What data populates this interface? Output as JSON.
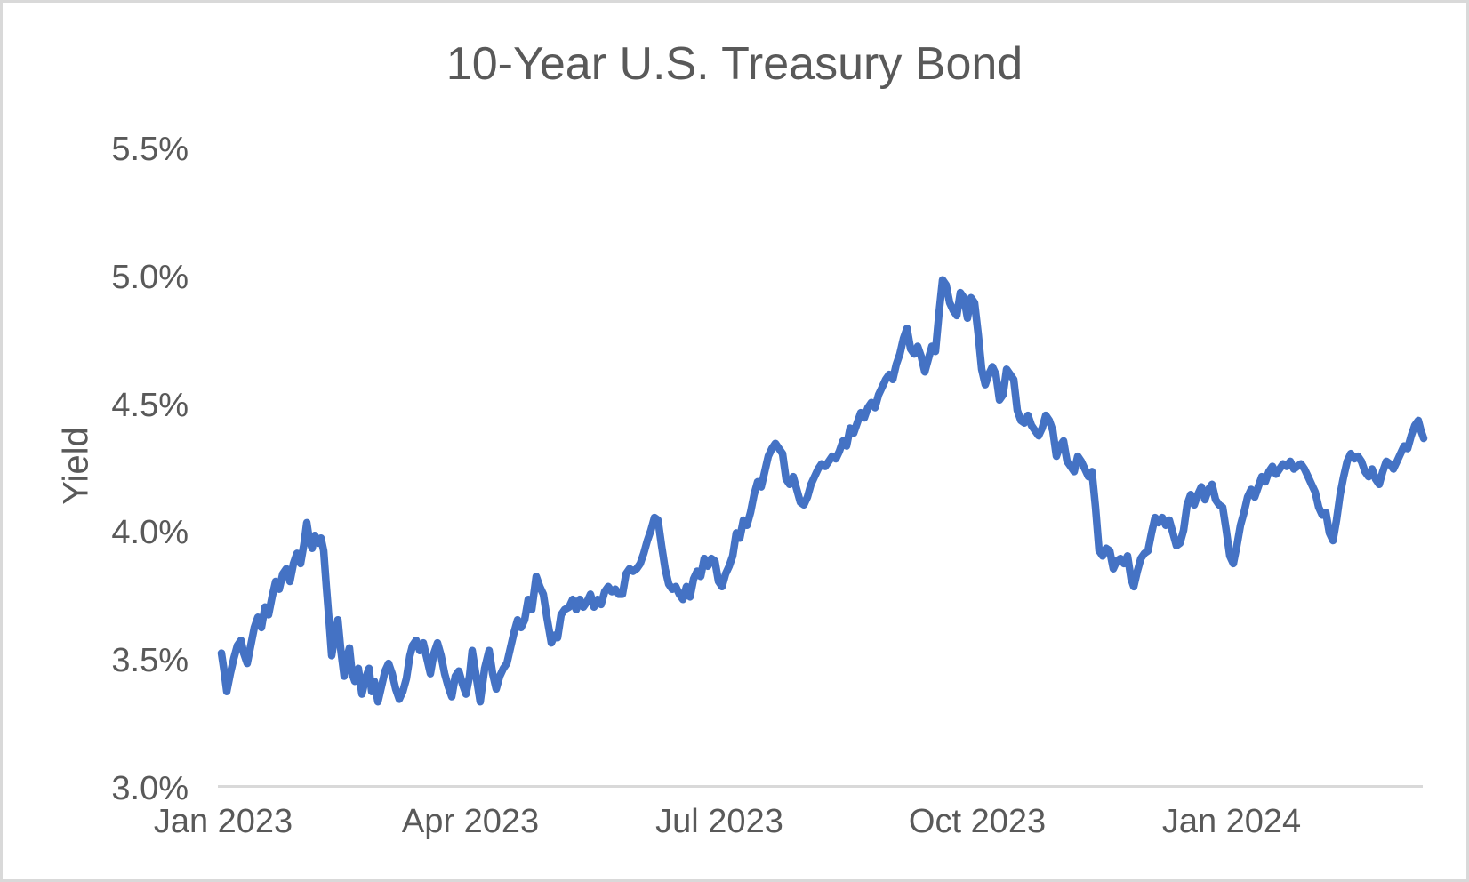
{
  "chart_data": {
    "type": "line",
    "title": "10-Year U.S. Treasury Bond",
    "ylabel": "Yield",
    "line_color": "#4472C4",
    "axis_line_color": "#d9d9d9",
    "text_color": "#595959",
    "grid": false,
    "legend": false,
    "ylim": [
      3.0,
      5.5
    ],
    "y_ticks": [
      {
        "label": "5.5%",
        "value": 5.5
      },
      {
        "label": "5.0%",
        "value": 5.0
      },
      {
        "label": "4.5%",
        "value": 4.5
      },
      {
        "label": "4.0%",
        "value": 4.0
      },
      {
        "label": "3.5%",
        "value": 3.5
      },
      {
        "label": "3.0%",
        "value": 3.0
      }
    ],
    "x_span": 1352,
    "x_ticks": [
      {
        "label": "Jan 2023",
        "pos": 2
      },
      {
        "label": "Apr 2023",
        "pos": 280
      },
      {
        "label": "Jul 2023",
        "pos": 560
      },
      {
        "label": "Oct 2023",
        "pos": 850
      },
      {
        "label": "Jan 2024",
        "pos": 1136
      }
    ],
    "points": [
      [
        0,
        3.53
      ],
      [
        3,
        3.46
      ],
      [
        6,
        3.38
      ],
      [
        10,
        3.45
      ],
      [
        14,
        3.51
      ],
      [
        18,
        3.56
      ],
      [
        22,
        3.58
      ],
      [
        25,
        3.53
      ],
      [
        29,
        3.49
      ],
      [
        33,
        3.56
      ],
      [
        37,
        3.63
      ],
      [
        41,
        3.67
      ],
      [
        45,
        3.63
      ],
      [
        49,
        3.71
      ],
      [
        53,
        3.68
      ],
      [
        57,
        3.75
      ],
      [
        61,
        3.81
      ],
      [
        65,
        3.78
      ],
      [
        69,
        3.84
      ],
      [
        73,
        3.86
      ],
      [
        77,
        3.81
      ],
      [
        81,
        3.88
      ],
      [
        85,
        3.92
      ],
      [
        89,
        3.88
      ],
      [
        93,
        3.96
      ],
      [
        96,
        4.04
      ],
      [
        99,
        3.97
      ],
      [
        102,
        3.94
      ],
      [
        105,
        3.99
      ],
      [
        109,
        3.96
      ],
      [
        112,
        3.98
      ],
      [
        115,
        3.93
      ],
      [
        118,
        3.79
      ],
      [
        121,
        3.66
      ],
      [
        124,
        3.52
      ],
      [
        128,
        3.61
      ],
      [
        131,
        3.66
      ],
      [
        134,
        3.55
      ],
      [
        138,
        3.44
      ],
      [
        141,
        3.51
      ],
      [
        144,
        3.55
      ],
      [
        147,
        3.45
      ],
      [
        150,
        3.42
      ],
      [
        154,
        3.47
      ],
      [
        158,
        3.37
      ],
      [
        162,
        3.43
      ],
      [
        166,
        3.47
      ],
      [
        169,
        3.38
      ],
      [
        172,
        3.42
      ],
      [
        176,
        3.34
      ],
      [
        180,
        3.4
      ],
      [
        184,
        3.46
      ],
      [
        188,
        3.49
      ],
      [
        192,
        3.45
      ],
      [
        196,
        3.39
      ],
      [
        200,
        3.35
      ],
      [
        204,
        3.38
      ],
      [
        208,
        3.43
      ],
      [
        212,
        3.52
      ],
      [
        215,
        3.56
      ],
      [
        219,
        3.58
      ],
      [
        223,
        3.54
      ],
      [
        227,
        3.57
      ],
      [
        231,
        3.51
      ],
      [
        235,
        3.45
      ],
      [
        239,
        3.53
      ],
      [
        243,
        3.57
      ],
      [
        247,
        3.52
      ],
      [
        251,
        3.45
      ],
      [
        255,
        3.4
      ],
      [
        259,
        3.36
      ],
      [
        263,
        3.44
      ],
      [
        267,
        3.46
      ],
      [
        271,
        3.41
      ],
      [
        275,
        3.37
      ],
      [
        279,
        3.44
      ],
      [
        282,
        3.54
      ],
      [
        286,
        3.45
      ],
      [
        291,
        3.34
      ],
      [
        296,
        3.47
      ],
      [
        301,
        3.54
      ],
      [
        305,
        3.45
      ],
      [
        309,
        3.39
      ],
      [
        313,
        3.44
      ],
      [
        317,
        3.47
      ],
      [
        321,
        3.49
      ],
      [
        325,
        3.55
      ],
      [
        329,
        3.61
      ],
      [
        333,
        3.66
      ],
      [
        337,
        3.63
      ],
      [
        341,
        3.66
      ],
      [
        345,
        3.74
      ],
      [
        349,
        3.7
      ],
      [
        354,
        3.83
      ],
      [
        358,
        3.79
      ],
      [
        362,
        3.76
      ],
      [
        366,
        3.67
      ],
      [
        371,
        3.57
      ],
      [
        375,
        3.6
      ],
      [
        378,
        3.59
      ],
      [
        382,
        3.68
      ],
      [
        386,
        3.7
      ],
      [
        391,
        3.71
      ],
      [
        395,
        3.74
      ],
      [
        399,
        3.7
      ],
      [
        403,
        3.74
      ],
      [
        407,
        3.71
      ],
      [
        411,
        3.73
      ],
      [
        415,
        3.76
      ],
      [
        419,
        3.71
      ],
      [
        423,
        3.74
      ],
      [
        427,
        3.72
      ],
      [
        431,
        3.77
      ],
      [
        435,
        3.79
      ],
      [
        439,
        3.77
      ],
      [
        443,
        3.78
      ],
      [
        447,
        3.76
      ],
      [
        451,
        3.76
      ],
      [
        455,
        3.84
      ],
      [
        459,
        3.86
      ],
      [
        463,
        3.85
      ],
      [
        467,
        3.86
      ],
      [
        471,
        3.88
      ],
      [
        475,
        3.92
      ],
      [
        479,
        3.97
      ],
      [
        483,
        4.01
      ],
      [
        487,
        4.06
      ],
      [
        491,
        4.05
      ],
      [
        495,
        3.95
      ],
      [
        499,
        3.86
      ],
      [
        503,
        3.8
      ],
      [
        507,
        3.78
      ],
      [
        511,
        3.79
      ],
      [
        515,
        3.76
      ],
      [
        519,
        3.74
      ],
      [
        523,
        3.79
      ],
      [
        527,
        3.75
      ],
      [
        531,
        3.82
      ],
      [
        535,
        3.85
      ],
      [
        539,
        3.83
      ],
      [
        543,
        3.9
      ],
      [
        547,
        3.87
      ],
      [
        551,
        3.9
      ],
      [
        555,
        3.89
      ],
      [
        559,
        3.81
      ],
      [
        563,
        3.79
      ],
      [
        567,
        3.84
      ],
      [
        571,
        3.87
      ],
      [
        575,
        3.91
      ],
      [
        579,
        4.0
      ],
      [
        583,
        3.98
      ],
      [
        587,
        4.05
      ],
      [
        591,
        4.03
      ],
      [
        595,
        4.08
      ],
      [
        599,
        4.15
      ],
      [
        603,
        4.2
      ],
      [
        607,
        4.18
      ],
      [
        611,
        4.24
      ],
      [
        615,
        4.3
      ],
      [
        619,
        4.33
      ],
      [
        623,
        4.35
      ],
      [
        627,
        4.33
      ],
      [
        631,
        4.31
      ],
      [
        635,
        4.21
      ],
      [
        639,
        4.19
      ],
      [
        643,
        4.22
      ],
      [
        647,
        4.17
      ],
      [
        651,
        4.12
      ],
      [
        655,
        4.11
      ],
      [
        659,
        4.14
      ],
      [
        663,
        4.19
      ],
      [
        667,
        4.22
      ],
      [
        671,
        4.25
      ],
      [
        675,
        4.27
      ],
      [
        679,
        4.26
      ],
      [
        683,
        4.28
      ],
      [
        687,
        4.3
      ],
      [
        691,
        4.29
      ],
      [
        695,
        4.32
      ],
      [
        699,
        4.36
      ],
      [
        703,
        4.34
      ],
      [
        707,
        4.41
      ],
      [
        711,
        4.39
      ],
      [
        715,
        4.43
      ],
      [
        719,
        4.47
      ],
      [
        723,
        4.45
      ],
      [
        727,
        4.49
      ],
      [
        731,
        4.51
      ],
      [
        735,
        4.49
      ],
      [
        739,
        4.54
      ],
      [
        743,
        4.57
      ],
      [
        747,
        4.6
      ],
      [
        751,
        4.62
      ],
      [
        755,
        4.6
      ],
      [
        759,
        4.66
      ],
      [
        763,
        4.7
      ],
      [
        767,
        4.76
      ],
      [
        771,
        4.8
      ],
      [
        775,
        4.72
      ],
      [
        779,
        4.7
      ],
      [
        783,
        4.73
      ],
      [
        787,
        4.69
      ],
      [
        791,
        4.63
      ],
      [
        795,
        4.68
      ],
      [
        799,
        4.73
      ],
      [
        803,
        4.71
      ],
      [
        807,
        4.86
      ],
      [
        811,
        4.99
      ],
      [
        815,
        4.97
      ],
      [
        819,
        4.9
      ],
      [
        823,
        4.87
      ],
      [
        827,
        4.85
      ],
      [
        831,
        4.94
      ],
      [
        835,
        4.92
      ],
      [
        839,
        4.84
      ],
      [
        843,
        4.92
      ],
      [
        847,
        4.9
      ],
      [
        851,
        4.78
      ],
      [
        855,
        4.64
      ],
      [
        859,
        4.58
      ],
      [
        863,
        4.62
      ],
      [
        867,
        4.65
      ],
      [
        871,
        4.62
      ],
      [
        875,
        4.52
      ],
      [
        879,
        4.54
      ],
      [
        883,
        4.64
      ],
      [
        887,
        4.62
      ],
      [
        891,
        4.6
      ],
      [
        895,
        4.48
      ],
      [
        899,
        4.44
      ],
      [
        903,
        4.43
      ],
      [
        907,
        4.46
      ],
      [
        911,
        4.42
      ],
      [
        915,
        4.4
      ],
      [
        919,
        4.38
      ],
      [
        923,
        4.41
      ],
      [
        927,
        4.46
      ],
      [
        931,
        4.44
      ],
      [
        935,
        4.4
      ],
      [
        939,
        4.3
      ],
      [
        943,
        4.34
      ],
      [
        947,
        4.36
      ],
      [
        951,
        4.28
      ],
      [
        955,
        4.26
      ],
      [
        959,
        4.24
      ],
      [
        963,
        4.3
      ],
      [
        967,
        4.28
      ],
      [
        971,
        4.25
      ],
      [
        975,
        4.22
      ],
      [
        979,
        4.24
      ],
      [
        983,
        4.1
      ],
      [
        987,
        3.93
      ],
      [
        991,
        3.91
      ],
      [
        995,
        3.94
      ],
      [
        999,
        3.93
      ],
      [
        1003,
        3.86
      ],
      [
        1007,
        3.89
      ],
      [
        1011,
        3.9
      ],
      [
        1015,
        3.88
      ],
      [
        1019,
        3.91
      ],
      [
        1023,
        3.82
      ],
      [
        1026,
        3.79
      ],
      [
        1030,
        3.85
      ],
      [
        1034,
        3.9
      ],
      [
        1038,
        3.92
      ],
      [
        1042,
        3.93
      ],
      [
        1046,
        4.0
      ],
      [
        1050,
        4.06
      ],
      [
        1054,
        4.04
      ],
      [
        1058,
        4.06
      ],
      [
        1062,
        4.03
      ],
      [
        1066,
        4.05
      ],
      [
        1070,
        4.0
      ],
      [
        1074,
        3.95
      ],
      [
        1078,
        3.96
      ],
      [
        1082,
        4.01
      ],
      [
        1086,
        4.11
      ],
      [
        1090,
        4.15
      ],
      [
        1094,
        4.11
      ],
      [
        1098,
        4.15
      ],
      [
        1102,
        4.18
      ],
      [
        1106,
        4.13
      ],
      [
        1110,
        4.17
      ],
      [
        1114,
        4.19
      ],
      [
        1118,
        4.13
      ],
      [
        1122,
        4.11
      ],
      [
        1126,
        4.1
      ],
      [
        1130,
        4.01
      ],
      [
        1134,
        3.91
      ],
      [
        1138,
        3.88
      ],
      [
        1142,
        3.95
      ],
      [
        1146,
        4.03
      ],
      [
        1150,
        4.08
      ],
      [
        1154,
        4.14
      ],
      [
        1158,
        4.17
      ],
      [
        1162,
        4.14
      ],
      [
        1166,
        4.18
      ],
      [
        1170,
        4.22
      ],
      [
        1174,
        4.2
      ],
      [
        1178,
        4.24
      ],
      [
        1182,
        4.26
      ],
      [
        1186,
        4.23
      ],
      [
        1190,
        4.25
      ],
      [
        1194,
        4.27
      ],
      [
        1198,
        4.26
      ],
      [
        1202,
        4.28
      ],
      [
        1206,
        4.25
      ],
      [
        1210,
        4.26
      ],
      [
        1214,
        4.27
      ],
      [
        1218,
        4.25
      ],
      [
        1222,
        4.22
      ],
      [
        1226,
        4.19
      ],
      [
        1230,
        4.16
      ],
      [
        1234,
        4.1
      ],
      [
        1238,
        4.07
      ],
      [
        1242,
        4.08
      ],
      [
        1246,
        4.0
      ],
      [
        1250,
        3.97
      ],
      [
        1254,
        4.05
      ],
      [
        1258,
        4.15
      ],
      [
        1262,
        4.22
      ],
      [
        1266,
        4.28
      ],
      [
        1270,
        4.31
      ],
      [
        1274,
        4.29
      ],
      [
        1278,
        4.3
      ],
      [
        1282,
        4.28
      ],
      [
        1286,
        4.24
      ],
      [
        1290,
        4.22
      ],
      [
        1294,
        4.25
      ],
      [
        1298,
        4.21
      ],
      [
        1302,
        4.19
      ],
      [
        1306,
        4.24
      ],
      [
        1310,
        4.28
      ],
      [
        1314,
        4.27
      ],
      [
        1318,
        4.25
      ],
      [
        1322,
        4.28
      ],
      [
        1326,
        4.31
      ],
      [
        1330,
        4.34
      ],
      [
        1334,
        4.33
      ],
      [
        1338,
        4.38
      ],
      [
        1342,
        4.42
      ],
      [
        1346,
        4.44
      ],
      [
        1349,
        4.4
      ],
      [
        1352,
        4.37
      ]
    ]
  }
}
